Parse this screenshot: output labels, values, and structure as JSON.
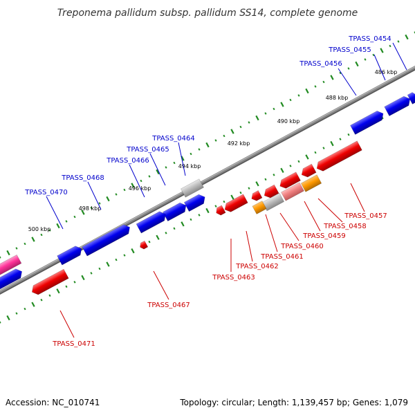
{
  "title": "Treponema pallidum subsp. pallidum SS14, complete genome",
  "accession": "Accession: NC_010741",
  "summary": "Topology: circular; Length: 1,139,457 bp; Genes: 1,079",
  "colors": {
    "forward": "#0000ee",
    "reverse": "#ee0000",
    "pink": "#ff3399",
    "gray": "#bbbbbb",
    "salmon": "#f08080",
    "orange": "#ff9900",
    "backbone": "#888888",
    "dots": "#228b22",
    "label_fwd": "#0000cc",
    "label_rev": "#cc0000"
  },
  "kbp_marks": [
    "486 kbp",
    "488 kbp",
    "490 kbp",
    "492 kbp",
    "494 kbp",
    "496 kbp",
    "498 kbp",
    "500 kbp"
  ],
  "forward_labels": [
    "TPASS_0454",
    "TPASS_0455",
    "TPASS_0456",
    "TPASS_0464",
    "TPASS_0465",
    "TPASS_0466",
    "TPASS_0468",
    "TPASS_0470"
  ],
  "reverse_labels": [
    "TPASS_0457",
    "TPASS_0458",
    "TPASS_0459",
    "TPASS_0460",
    "TPASS_0461",
    "TPASS_0462",
    "TPASS_0463",
    "TPASS_0467",
    "TPASS_0471"
  ]
}
